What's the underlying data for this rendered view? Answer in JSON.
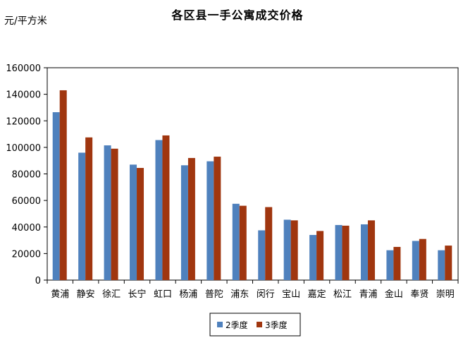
{
  "chart_data": {
    "type": "bar",
    "title": "各区县一手公寓成交价格",
    "ylabel": "元/平方米",
    "xlabel": "",
    "ylim": [
      0,
      160000
    ],
    "yticks": [
      "0",
      "20000",
      "40000",
      "60000",
      "80000",
      "100000",
      "120000",
      "140000",
      "160000"
    ],
    "categories": [
      "黄浦",
      "静安",
      "徐汇",
      "长宁",
      "虹口",
      "杨浦",
      "普陀",
      "浦东",
      "闵行",
      "宝山",
      "嘉定",
      "松江",
      "青浦",
      "金山",
      "奉贤",
      "崇明"
    ],
    "series": [
      {
        "name": "2季度",
        "color": "#4f81bd",
        "values": [
          126500,
          96000,
          101500,
          87000,
          105500,
          86500,
          89500,
          57500,
          37500,
          45500,
          34000,
          41500,
          42000,
          22500,
          29500,
          22500
        ]
      },
      {
        "name": "3季度",
        "color": "#a0360f",
        "values": [
          143000,
          107500,
          99000,
          84500,
          109000,
          92000,
          93000,
          56000,
          55000,
          45000,
          37000,
          41000,
          45000,
          25000,
          31000,
          26000
        ]
      }
    ],
    "grid": false,
    "legend_position": "bottom"
  }
}
